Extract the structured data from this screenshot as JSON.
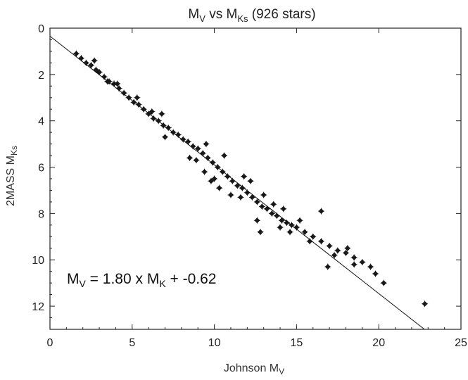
{
  "chart_data": {
    "type": "scatter",
    "title": {
      "main": "M",
      "main_sub": "V",
      "mid": " vs M",
      "mid_sub": "Ks",
      "tail": " (926 stars)"
    },
    "xlabel": {
      "text": "Johnson M",
      "sub": "V"
    },
    "ylabel": {
      "text": "2MASS M",
      "sub": "Ks"
    },
    "xlim": [
      0,
      25
    ],
    "ylim": [
      13,
      0
    ],
    "y_inverted": true,
    "xticks": [
      "0",
      "5",
      "10",
      "15",
      "20",
      "25"
    ],
    "yticks": [
      "0",
      "2",
      "4",
      "6",
      "8",
      "10",
      "12"
    ],
    "grid": false,
    "fit_line": {
      "slope": 1.8,
      "intercept": -0.62,
      "description": "M_V = 1.80 x M_K + -0.62"
    },
    "annotation": {
      "p1": "M",
      "p1_sub": "V",
      "p2": " = 1.80 x M",
      "p2_sub": "K",
      "p3": " + -0.62"
    },
    "total_stars": 926,
    "series": [
      {
        "marker": "diamond-with-errorbars",
        "points": [
          [
            1.6,
            1.1
          ],
          [
            1.9,
            1.3
          ],
          [
            2.2,
            1.5
          ],
          [
            2.5,
            1.6
          ],
          [
            2.8,
            1.8
          ],
          [
            3.0,
            1.9
          ],
          [
            3.3,
            2.1
          ],
          [
            3.6,
            2.3
          ],
          [
            3.9,
            2.4
          ],
          [
            4.2,
            2.6
          ],
          [
            4.5,
            2.8
          ],
          [
            4.8,
            3.0
          ],
          [
            5.1,
            3.2
          ],
          [
            5.4,
            3.3
          ],
          [
            5.7,
            3.5
          ],
          [
            6.0,
            3.7
          ],
          [
            6.3,
            3.9
          ],
          [
            6.6,
            4.0
          ],
          [
            6.9,
            4.2
          ],
          [
            7.2,
            4.3
          ],
          [
            7.5,
            4.5
          ],
          [
            7.8,
            4.6
          ],
          [
            8.1,
            4.8
          ],
          [
            8.4,
            4.9
          ],
          [
            8.7,
            5.1
          ],
          [
            9.0,
            5.2
          ],
          [
            9.3,
            5.4
          ],
          [
            9.6,
            5.6
          ],
          [
            9.9,
            5.8
          ],
          [
            10.2,
            6.0
          ],
          [
            10.5,
            6.2
          ],
          [
            10.8,
            6.4
          ],
          [
            11.1,
            6.6
          ],
          [
            11.4,
            6.8
          ],
          [
            11.7,
            6.9
          ],
          [
            12.0,
            7.1
          ],
          [
            12.3,
            7.3
          ],
          [
            12.6,
            7.5
          ],
          [
            12.9,
            7.7
          ],
          [
            13.2,
            7.8
          ],
          [
            13.5,
            8.0
          ],
          [
            13.8,
            8.1
          ],
          [
            14.1,
            8.3
          ],
          [
            14.4,
            8.4
          ],
          [
            14.7,
            8.5
          ],
          [
            15.0,
            8.6
          ],
          [
            15.5,
            8.8
          ],
          [
            16.0,
            9.0
          ],
          [
            16.5,
            9.2
          ],
          [
            17.0,
            9.4
          ],
          [
            17.5,
            9.6
          ],
          [
            18.0,
            9.7
          ],
          [
            18.5,
            9.9
          ],
          [
            19.0,
            10.1
          ],
          [
            19.5,
            10.3
          ],
          [
            6.2,
            3.6
          ],
          [
            6.8,
            3.7
          ],
          [
            7.0,
            4.7
          ],
          [
            8.5,
            5.6
          ],
          [
            9.5,
            5.0
          ],
          [
            9.4,
            6.2
          ],
          [
            10.0,
            6.5
          ],
          [
            10.6,
            5.5
          ],
          [
            11.0,
            7.2
          ],
          [
            11.8,
            6.4
          ],
          [
            12.2,
            6.6
          ],
          [
            12.6,
            8.3
          ],
          [
            13.0,
            7.2
          ],
          [
            13.6,
            7.6
          ],
          [
            14.2,
            7.8
          ],
          [
            14.6,
            8.8
          ],
          [
            15.2,
            8.3
          ],
          [
            16.5,
            7.9
          ],
          [
            12.8,
            8.8
          ],
          [
            11.6,
            7.3
          ],
          [
            10.3,
            6.9
          ],
          [
            9.8,
            6.6
          ],
          [
            8.9,
            5.7
          ],
          [
            15.8,
            9.2
          ],
          [
            16.9,
            10.3
          ],
          [
            18.1,
            9.5
          ],
          [
            18.5,
            10.2
          ],
          [
            19.8,
            10.6
          ],
          [
            20.3,
            11.0
          ],
          [
            22.8,
            11.9
          ],
          [
            17.3,
            9.8
          ],
          [
            14.0,
            8.6
          ],
          [
            5.3,
            3.0
          ],
          [
            4.1,
            2.4
          ],
          [
            3.5,
            2.3
          ],
          [
            2.7,
            1.4
          ]
        ]
      }
    ]
  }
}
